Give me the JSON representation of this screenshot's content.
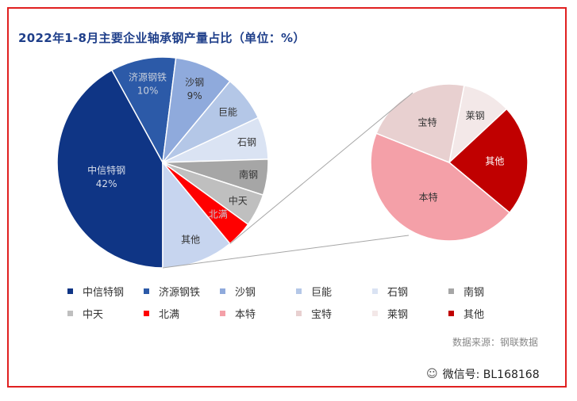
{
  "title": "2022年1-8月主要企业轴承钢产量占比（单位：%）",
  "source": "数据来源：钢联数据",
  "watermark": "微信号: BL168168",
  "watermark_icon": "wechat-icon",
  "chart_data": [
    {
      "type": "pie",
      "slices": [
        {
          "label": "中信特钢",
          "value": 42,
          "value_text": "42%",
          "color": "#0f3585"
        },
        {
          "label": "济源钢铁",
          "value": 10,
          "value_text": "10%",
          "color": "#2c5aa8"
        },
        {
          "label": "沙钢",
          "value": 9,
          "value_text": "9%",
          "color": "#8faadc"
        },
        {
          "label": "巨能",
          "value": 7,
          "value_text": "",
          "color": "#b4c7e7"
        },
        {
          "label": "石钢",
          "value": 6.5,
          "value_text": "",
          "color": "#dae3f3"
        },
        {
          "label": "南钢",
          "value": 5.5,
          "value_text": "",
          "color": "#a6a6a6"
        },
        {
          "label": "中天",
          "value": 5,
          "value_text": "",
          "color": "#bfbfbf"
        },
        {
          "label": "北满",
          "value": 4,
          "value_text": "",
          "color": "#ff0000"
        },
        {
          "label": "其他",
          "value": 11,
          "value_text": "",
          "color": "#c7d5ef"
        }
      ]
    },
    {
      "type": "pie",
      "slices": [
        {
          "label": "莱钢",
          "value": 10,
          "color": "#f3e8e8"
        },
        {
          "label": "其他",
          "value": 23,
          "color": "#c00000"
        },
        {
          "label": "本特",
          "value": 45,
          "color": "#f4a0a8"
        },
        {
          "label": "宝特",
          "value": 22,
          "color": "#e8d0d0"
        }
      ]
    }
  ],
  "legend": [
    {
      "label": "中信特钢",
      "color": "#0f3585"
    },
    {
      "label": "济源钢铁",
      "color": "#2c5aa8"
    },
    {
      "label": "沙钢",
      "color": "#8faadc"
    },
    {
      "label": "巨能",
      "color": "#b4c7e7"
    },
    {
      "label": "石钢",
      "color": "#dae3f3"
    },
    {
      "label": "南钢",
      "color": "#a6a6a6"
    },
    {
      "label": "中天",
      "color": "#bfbfbf"
    },
    {
      "label": "北满",
      "color": "#ff0000"
    },
    {
      "label": "本特",
      "color": "#f4a0a8"
    },
    {
      "label": "宝特",
      "color": "#e8d0d0"
    },
    {
      "label": "莱钢",
      "color": "#f3e8e8"
    },
    {
      "label": "其他",
      "color": "#c00000"
    }
  ]
}
